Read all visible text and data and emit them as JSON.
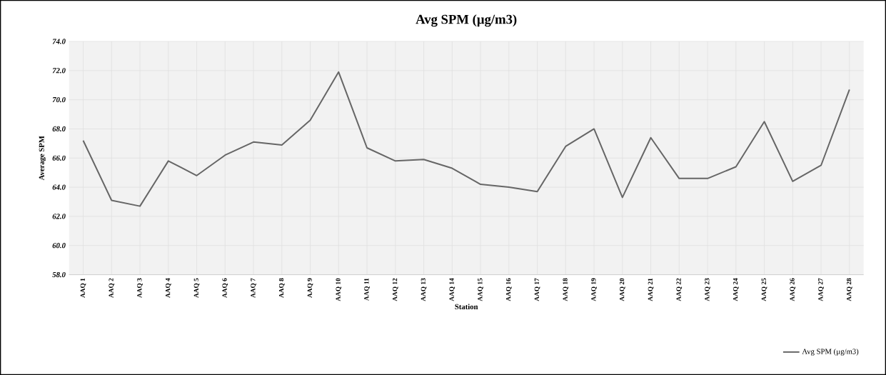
{
  "chart_data": {
    "type": "line",
    "title": "Avg SPM (µg/m3)",
    "xlabel": "Station",
    "ylabel": "Average SPM",
    "categories": [
      "AAQ 1",
      "AAQ 2",
      "AAQ 3",
      "AAQ 4",
      "AAQ 5",
      "AAQ 6",
      "AAQ 7",
      "AAQ 8",
      "AAQ 9",
      "AAQ 10",
      "AAQ 11",
      "AAQ 12",
      "AAQ 13",
      "AAQ 14",
      "AAQ 15",
      "AAQ 16",
      "AAQ 17",
      "AAQ 18",
      "AAQ 19",
      "AAQ 20",
      "AAQ 21",
      "AAQ 22",
      "AAQ 23",
      "AAQ 24",
      "AAQ 25",
      "AAQ 26",
      "AAQ 27",
      "AAQ 28"
    ],
    "series": [
      {
        "name": "Avg SPM (µg/m3)",
        "color": "#666666",
        "values": [
          67.2,
          63.1,
          62.7,
          65.8,
          64.8,
          66.2,
          67.1,
          66.9,
          68.6,
          71.9,
          66.7,
          65.8,
          65.9,
          65.3,
          64.2,
          64.0,
          63.7,
          66.8,
          68.0,
          63.3,
          67.4,
          64.6,
          64.6,
          65.4,
          68.5,
          64.4,
          65.5,
          70.7
        ]
      }
    ],
    "ylim": [
      58,
      74
    ],
    "yticks": [
      {
        "value": 58,
        "label": "58.0"
      },
      {
        "value": 60,
        "label": "60.0"
      },
      {
        "value": 62,
        "label": "62.0"
      },
      {
        "value": 64,
        "label": "64.0"
      },
      {
        "value": 66,
        "label": "66.0"
      },
      {
        "value": 68,
        "label": "68.0"
      },
      {
        "value": 70,
        "label": "70.0"
      },
      {
        "value": 72,
        "label": "72.0"
      },
      {
        "value": 74,
        "label": "74.0"
      }
    ],
    "grid": true,
    "legend": "bottom right",
    "marker": "none",
    "line_style": "solid"
  }
}
